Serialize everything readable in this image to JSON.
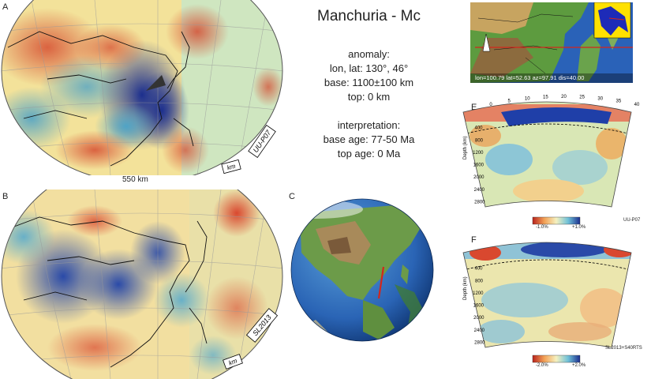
{
  "panel_labels": {
    "a": "A",
    "b": "B",
    "c": "C",
    "d": "D",
    "e": "E",
    "f": "F"
  },
  "title": "Manchuria - Mc",
  "anomaly": {
    "heading": "anomaly:",
    "lonlat": "lon, lat: 130°, 46°",
    "base": "base: 1100±100 km",
    "top": "top: 0 km"
  },
  "interpretation": {
    "heading": "interpretation:",
    "base_age": "base age: 77-50 Ma",
    "top_age": "top age: 0 Ma"
  },
  "map_a": {
    "scale": "550 km",
    "model_tag": "UU-P07",
    "km_tag": "km"
  },
  "map_b": {
    "model_tag": "SL2013",
    "km_tag": "km"
  },
  "map_d": {
    "coords": "lon=100.79 lat=52.63 az=97.91 dis=40.00"
  },
  "section_e": {
    "distance_ticks": [
      "0",
      "5",
      "10",
      "15",
      "20",
      "25",
      "30",
      "35",
      "40"
    ],
    "depth_label": "Depth (km)",
    "depth_ticks": [
      "400",
      "800",
      "1200",
      "1600",
      "2000",
      "2400",
      "2800"
    ],
    "cbar_min": "-1.0%",
    "cbar_max": "+1.0%",
    "model": "UU-P07"
  },
  "section_f": {
    "depth_label": "Depth (km)",
    "depth_ticks": [
      "400",
      "800",
      "1200",
      "1600",
      "2000",
      "2400",
      "2800"
    ],
    "cbar_min": "-2.0%",
    "cbar_max": "+2.0%",
    "model": "SL2013+S40RTS"
  },
  "colors": {
    "fast": "#1f3fa8",
    "slow": "#c9302c",
    "neutral": "#f1ecb0",
    "ocean": "#2a64b5",
    "land": "#6c9b49"
  }
}
